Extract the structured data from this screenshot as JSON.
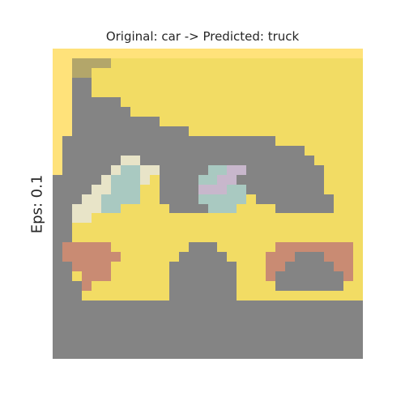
{
  "title": "Original: car -> Predicted: truck",
  "ylabel": "Eps: 0.1",
  "image": {
    "grid": 32,
    "rows": [
      "................................",
      "..BBBBYYYYYYYYYYYYYYYYYYYYYYYYYY",
      "..BBYYYYYYYYYYYYYYYYYYYYYYYYYYYY",
      "..GGYYYYYYYYYYYYYYYYYYYYYYYYYYYY",
      "..GGYYYYYYYYYYYYYYYYYYYYYYYYYYYY",
      "..GGGGGYYYYYYYYYYYYYYYYYYYYYYYYY",
      "..GGGGGGYYYYYYYYYYYYYYYYYYYYYYYY",
      "..GGGGGGGGGYYYYYYYYYYYYYYYYYYYYY",
      "..GGGGGGGGGGGGYYYYYYYYYYYYYYYYYY",
      ".GGGGGGGGGGGGGGGGGGGGGGYYYYYYYYY",
      ".GGGGGGGGGGGGGGGGGGGGGGGGGYYYYYY",
      ".GGGGGGWWGGGGGGGGGGGGGGGGGGYYYYY",
      ".GGGGGWCCWWGGGGGCCPPGGGGGGGGYYYY",
      "GGGGGWCCCWYGGGGCCPPGGGGGGGGGYYYY",
      "GGGGWWCCCYYGGGGPPPCCGGGGGGGGYYYY",
      "GGGWWCCCCYYGGGGCCCCCYGGGGGGGGYYY",
      "GGWWWCCYYYYYGGGGCCCYYYYGGGGGGYYY",
      "GGWWYYYYYYYYYYYYYYYYYYYYYYYYYYYY",
      "GGYYYYYYYYYYYYYYYYYYYYYYYYYYYYYY",
      "GGYYYYYYYYYYYYYYYYYYYYYYYYYYYYYY",
      "GRRRRRYYYYYYYYGGGYYYYYYRRRRRRRRY",
      "GRRRRRRYYYYYYGGGGGYYYYRRRGGGRRRY",
      "GGRRRRYYYYYYGGGGGGGYYYRRGGGGGRRY",
      "GGYRRRYYYYYYGGGGGGGYYYRGGGGGGGRY",
      "GGGRYYYYYYYYGGGGGGGYYYYGGGGGGGYY",
      "GGGYYYYYYYYYGGGGGGGYYYYYYYYYYYYY",
      "GGGGGGGGGGGGGGGGGGGGGGGGGGGGGGGG",
      "GGGGGGGGGGGGGGGGGGGGGGGGGGGGGGGG",
      "GGGGGGGGGGGGGGGGGGGGGGGGGGGGGGGG",
      "GGGGGGGGGGGGGGGGGGGGGGGGGGGGGGGG",
      "GGGGGGGGGGGGGGGGGGGGGGGGGGGGGGGG",
      "GGGGGGGGGGGGGGGGGGGGGGGGGGGGGGGG"
    ],
    "palette": {
      ".": "#ffe27a",
      "Y": "#f2dc64",
      "B": "#b3a66a",
      "G": "#848484",
      "W": "#e8e4c8",
      "C": "#a9c9c1",
      "P": "#c8b7cc",
      "R": "#c98b73"
    }
  }
}
